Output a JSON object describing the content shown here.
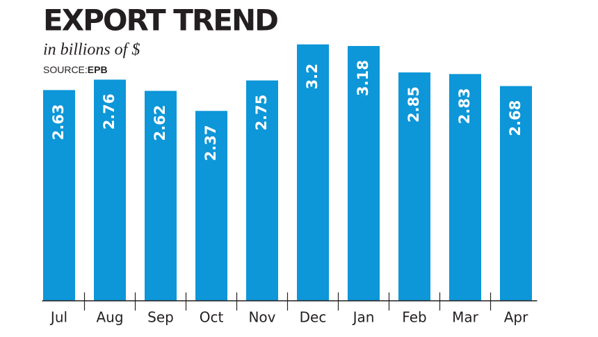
{
  "chart_data": {
    "type": "bar",
    "title": "EXPORT TREND",
    "subtitle": "in billions of $",
    "source_label": "SOURCE:",
    "source": "EPB",
    "categories": [
      "Jul",
      "Aug",
      "Sep",
      "Oct",
      "Nov",
      "Dec",
      "Jan",
      "Feb",
      "Mar",
      "Apr"
    ],
    "values": [
      2.63,
      2.76,
      2.62,
      2.37,
      2.75,
      3.2,
      3.18,
      2.85,
      2.83,
      2.68
    ],
    "color": "#0d96d8",
    "ylim": [
      0,
      3.25
    ]
  }
}
